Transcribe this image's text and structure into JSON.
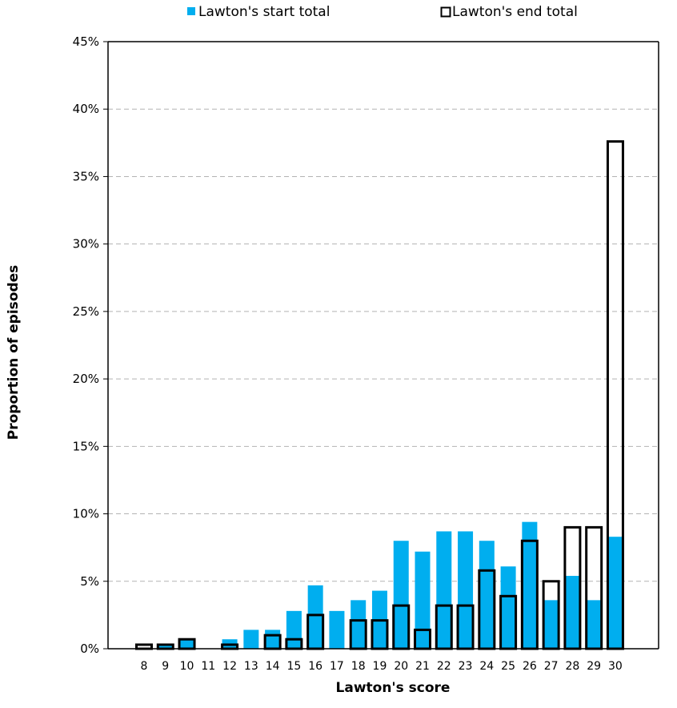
{
  "chart_data": {
    "type": "bar",
    "title": "",
    "xlabel": "Lawton's score",
    "ylabel": "Proportion of episodes",
    "ylim": [
      0,
      45
    ],
    "y_ticks": [
      "0%",
      "5%",
      "10%",
      "15%",
      "20%",
      "25%",
      "30%",
      "35%",
      "40%",
      "45%"
    ],
    "grid": true,
    "legend_position": "top",
    "categories": [
      "8",
      "9",
      "10",
      "11",
      "12",
      "13",
      "14",
      "15",
      "16",
      "17",
      "18",
      "19",
      "20",
      "21",
      "22",
      "23",
      "24",
      "25",
      "26",
      "27",
      "28",
      "29",
      "30"
    ],
    "series": [
      {
        "name": "Lawton's start total",
        "style": "filled",
        "color": "#00AEEF",
        "values": [
          0,
          0.3,
          0.7,
          0,
          0.7,
          1.4,
          1.4,
          2.8,
          4.7,
          2.8,
          3.6,
          4.3,
          8.0,
          7.2,
          8.7,
          8.7,
          8.0,
          6.1,
          9.4,
          3.6,
          5.4,
          3.6,
          8.3
        ]
      },
      {
        "name": "Lawton's end total",
        "style": "outline",
        "color": "#000000",
        "values": [
          0.3,
          0.3,
          0.7,
          0,
          0.3,
          0,
          1.0,
          0.7,
          2.5,
          0,
          2.1,
          2.1,
          3.2,
          1.4,
          3.2,
          3.2,
          5.8,
          3.9,
          8.0,
          5.0,
          9.0,
          9.0,
          37.6
        ]
      }
    ]
  }
}
